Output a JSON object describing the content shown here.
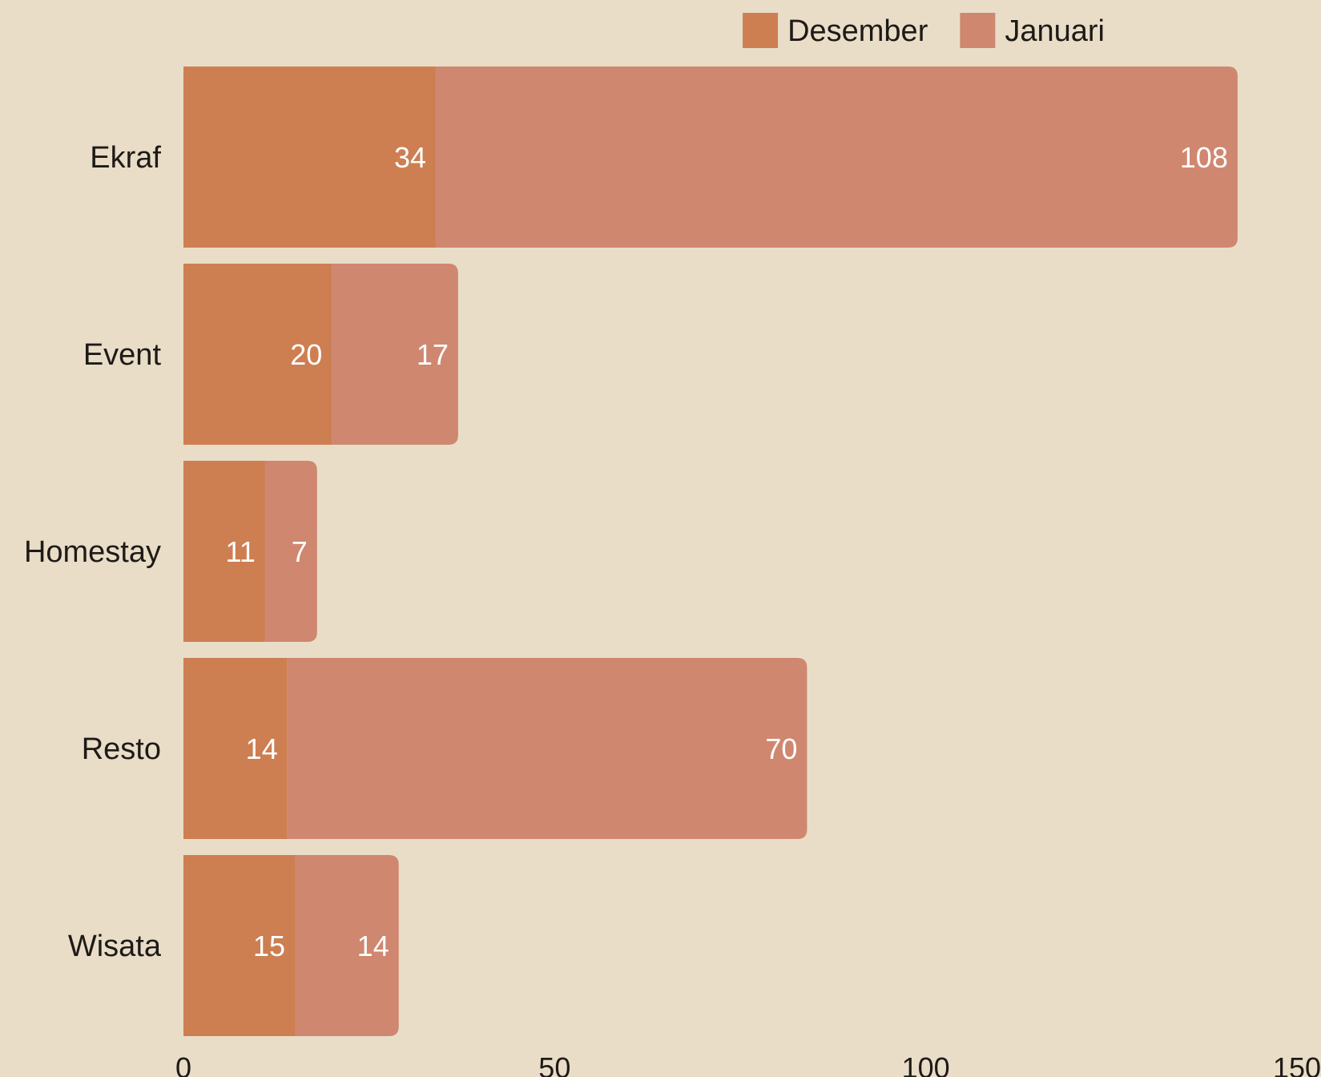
{
  "chart_data": {
    "type": "bar",
    "orientation": "horizontal",
    "stacked": true,
    "categories": [
      "Ekraf",
      "Event",
      "Homestay",
      "Resto",
      "Wisata"
    ],
    "series": [
      {
        "name": "Desember",
        "color": "#cd7f52",
        "values": [
          34,
          20,
          11,
          14,
          15
        ]
      },
      {
        "name": "Januari",
        "color": "#cf8770",
        "values": [
          108,
          17,
          7,
          70,
          14
        ]
      }
    ],
    "xlim": [
      0,
      150
    ],
    "xticks": [
      0,
      50,
      100,
      150
    ],
    "legend_position": "top-right",
    "grid": false,
    "background": "#e9ddc8"
  }
}
